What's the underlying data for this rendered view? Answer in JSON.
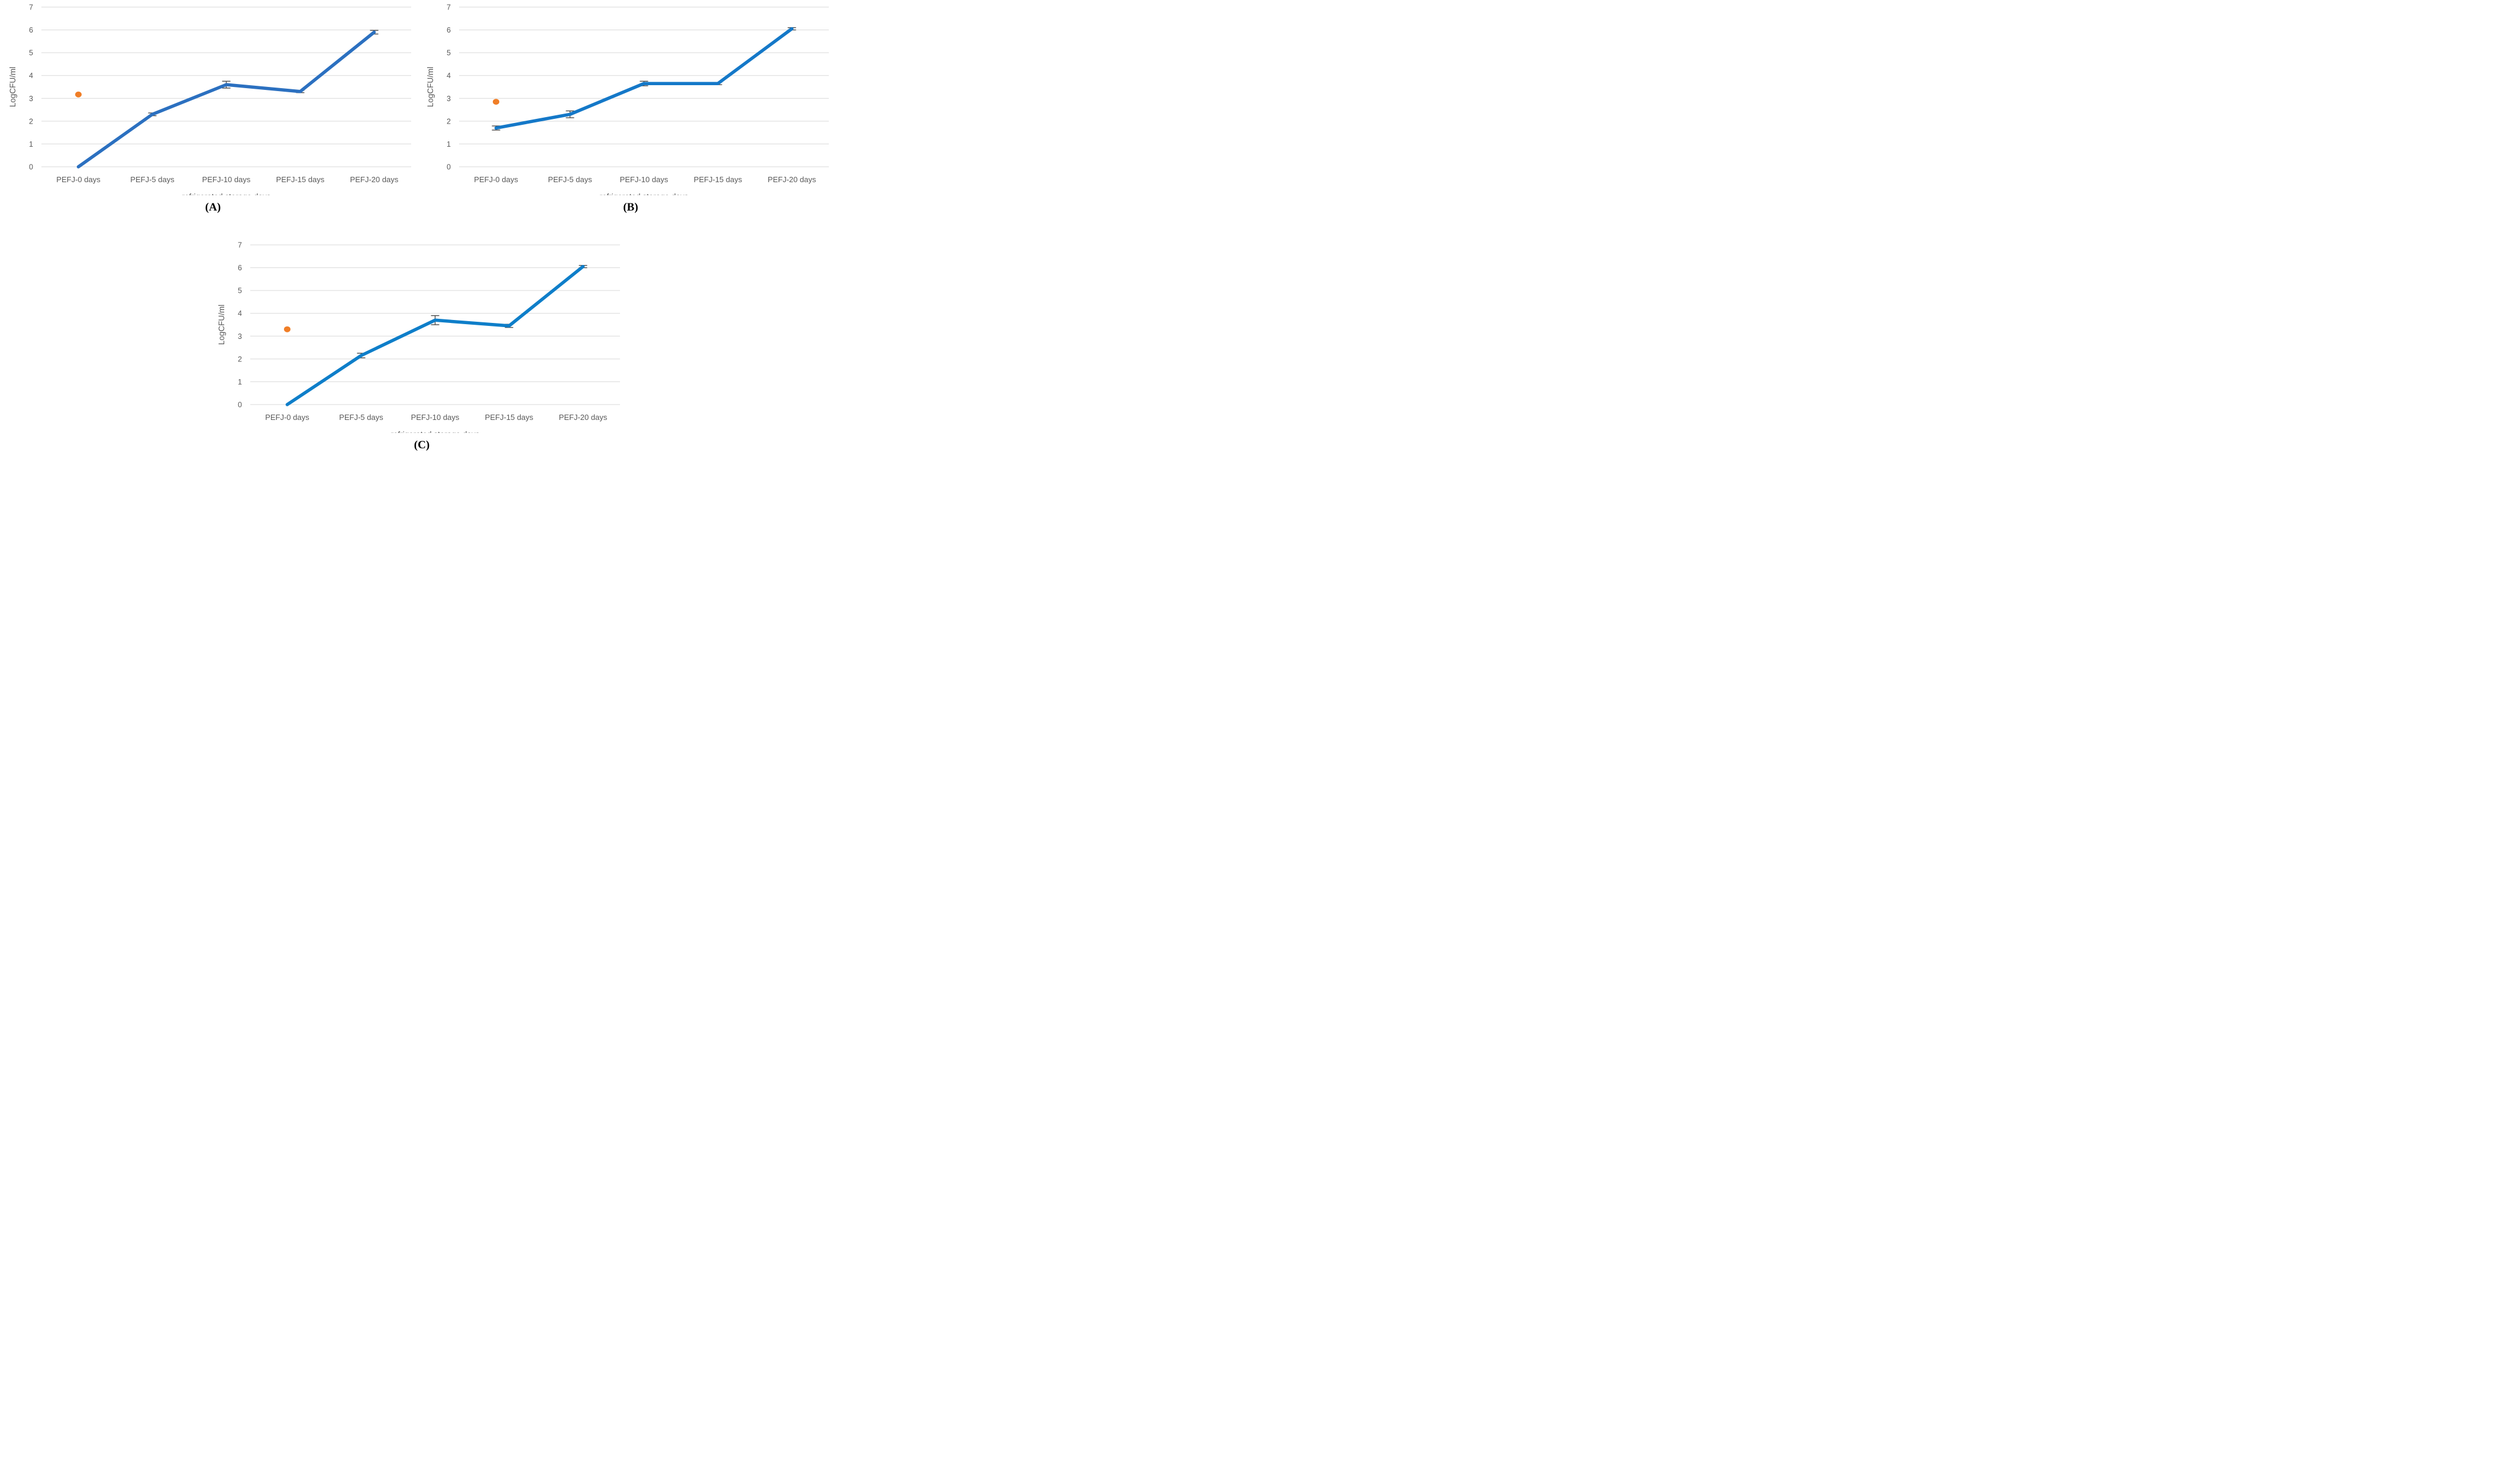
{
  "page": {
    "background": "#ffffff"
  },
  "style": {
    "gridline_color": "#d9d9d9",
    "axis_text_color": "#595959",
    "error_bar_color": "#4d4d4d",
    "caption_color": "#000000"
  },
  "chart_data": [
    {
      "id": "A",
      "type": "line",
      "caption": "(A)",
      "ylabel": "LogCFU/ml",
      "xlabel": "refrigerated storage days",
      "categories": [
        "PEFJ-0 days",
        "PEFJ-5 days",
        "PEFJ-10 days",
        "PEFJ-15 days",
        "PEFJ-20 days"
      ],
      "yticks": [
        0,
        1,
        2,
        3,
        4,
        5,
        6,
        7
      ],
      "ylim": [
        0,
        7
      ],
      "grid": true,
      "legend": "none",
      "line": {
        "color": "#2b70c0",
        "values": [
          0,
          2.3,
          3.6,
          3.3,
          5.9
        ],
        "errors": [
          0,
          0.06,
          0.15,
          0.05,
          0.08
        ]
      },
      "dot": {
        "color": "#f07e27",
        "category_index": 0,
        "value": 3.17
      }
    },
    {
      "id": "B",
      "type": "line",
      "caption": "(B)",
      "ylabel": "LogCFU/ml",
      "xlabel": "refrigerated storage days",
      "categories": [
        "PEFJ-0 days",
        "PEFJ-5 days",
        "PEFJ-10 days",
        "PEFJ-15 days",
        "PEFJ-20 days"
      ],
      "yticks": [
        0,
        1,
        2,
        3,
        4,
        5,
        6,
        7
      ],
      "ylim": [
        0,
        7
      ],
      "grid": true,
      "legend": "none",
      "line": {
        "color": "#1478c8",
        "values": [
          1.7,
          2.3,
          3.65,
          3.65,
          6.05
        ],
        "errors": [
          0.09,
          0.15,
          0.1,
          0.05,
          0.05
        ]
      },
      "dot": {
        "color": "#f07e27",
        "category_index": 0,
        "value": 2.85
      }
    },
    {
      "id": "C",
      "type": "line",
      "caption": "(C)",
      "ylabel": "LogCFU/ml",
      "xlabel": "refrigerated storage days",
      "categories": [
        "PEFJ-0 days",
        "PEFJ-5 days",
        "PEFJ-10 days",
        "PEFJ-15 days",
        "PEFJ-20 days"
      ],
      "yticks": [
        0,
        1,
        2,
        3,
        4,
        5,
        6,
        7
      ],
      "ylim": [
        0,
        7
      ],
      "grid": true,
      "legend": "none",
      "line": {
        "color": "#0e7ec9",
        "values": [
          0,
          2.15,
          3.7,
          3.45,
          6.05
        ],
        "errors": [
          0,
          0.1,
          0.2,
          0.07,
          0.05
        ]
      },
      "dot": {
        "color": "#f07e27",
        "category_index": 0,
        "value": 3.3
      }
    }
  ]
}
